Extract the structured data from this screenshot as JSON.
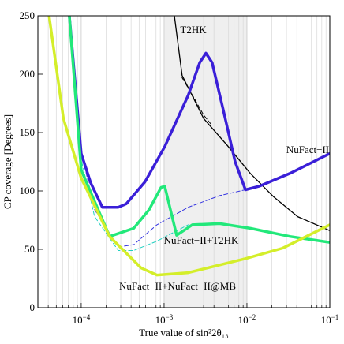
{
  "chart_data": {
    "type": "line",
    "xlabel": "True value of sin²2θ₁₃",
    "ylabel": "CP coverage [Degrees]",
    "xscale": "log",
    "xlim": [
      3e-05,
      0.1
    ],
    "ylim": [
      0,
      250
    ],
    "xticks": [
      {
        "value": 0.0001,
        "label": "10−4"
      },
      {
        "value": 0.001,
        "label": "10−3"
      },
      {
        "value": 0.01,
        "label": "10−2"
      },
      {
        "value": 0.1,
        "label": "10−1"
      }
    ],
    "xminorticks": [
      4e-05,
      5e-05,
      6e-05,
      7e-05,
      8e-05,
      9e-05,
      0.0002,
      0.0003,
      0.0004,
      0.0005,
      0.0006,
      0.0007,
      0.0008,
      0.0009,
      0.002,
      0.003,
      0.004,
      0.005,
      0.006,
      0.007,
      0.008,
      0.009,
      0.02,
      0.03,
      0.04,
      0.05,
      0.06,
      0.07,
      0.08,
      0.09
    ],
    "yticks": [
      0,
      50,
      100,
      150,
      200,
      250
    ],
    "grid": true,
    "shaded_xrange": [
      0.001,
      0.01
    ],
    "shade_color": "#efefef",
    "series": [
      {
        "name": "T2HK",
        "color": "#000000",
        "width": 1.3,
        "dashed": false,
        "x": [
          0.00133,
          0.00165,
          0.003,
          0.0058,
          0.011,
          0.021,
          0.041,
          0.1
        ],
        "values": [
          250,
          199,
          162,
          139,
          115,
          95,
          78,
          66
        ]
      },
      {
        "color": "#000000",
        "width": 1.0,
        "dashed": true,
        "x": [
          0.00165,
          0.0022,
          0.003,
          0.0038
        ],
        "values": [
          197,
          182,
          165,
          156
        ]
      },
      {
        "color": "#3535e0",
        "width": 1.0,
        "dashed": true,
        "x": [
          9.4e-05,
          0.000145,
          0.00028,
          0.00043,
          0.00082,
          0.00196,
          0.0047,
          0.0096
        ],
        "values": [
          142,
          84,
          52,
          54,
          71,
          86,
          96,
          101
        ]
      },
      {
        "color": "#20d0c0",
        "width": 1.0,
        "dashed": true,
        "x": [
          9.4e-05,
          0.000145,
          0.00028,
          0.00043,
          0.00082,
          0.00196
        ],
        "values": [
          135,
          78,
          49,
          49,
          57,
          71
        ]
      },
      {
        "name": "NuFact−II",
        "color": "#3a1fd8",
        "width": 3.5,
        "dashed": false,
        "x": [
          7.2e-05,
          0.0001,
          0.00013,
          0.00018,
          0.00028,
          0.00035,
          0.00059,
          0.00102,
          0.00196,
          0.0027,
          0.0032,
          0.0038,
          0.0052,
          0.0072,
          0.0096,
          0.014,
          0.033,
          0.1
        ],
        "values": [
          250,
          132,
          107,
          86,
          86,
          89,
          108,
          138,
          182,
          210,
          218,
          210,
          169,
          125,
          101,
          104,
          115,
          132
        ]
      },
      {
        "name": "NuFact−II+T2HK",
        "color": "#22e87a",
        "width": 3.5,
        "dashed": false,
        "x": [
          7.2e-05,
          0.0001,
          0.00022,
          0.00043,
          0.00066,
          0.00092,
          0.00102,
          0.00142,
          0.00219,
          0.0047,
          0.011,
          0.033,
          0.1
        ],
        "values": [
          250,
          118,
          61,
          68,
          84,
          103,
          104,
          62,
          71,
          72,
          68,
          61,
          56
        ]
      },
      {
        "name": "NuFact−II+NuFact−II@MB",
        "color": "#d4ee2a",
        "width": 3.5,
        "dashed": false,
        "x": [
          4.1e-05,
          6.1e-05,
          0.0001,
          0.00022,
          0.00053,
          0.00082,
          0.00196,
          0.0096,
          0.027,
          0.1
        ],
        "values": [
          250,
          162,
          111,
          61,
          34,
          28,
          30,
          42,
          51,
          71
        ]
      }
    ]
  }
}
